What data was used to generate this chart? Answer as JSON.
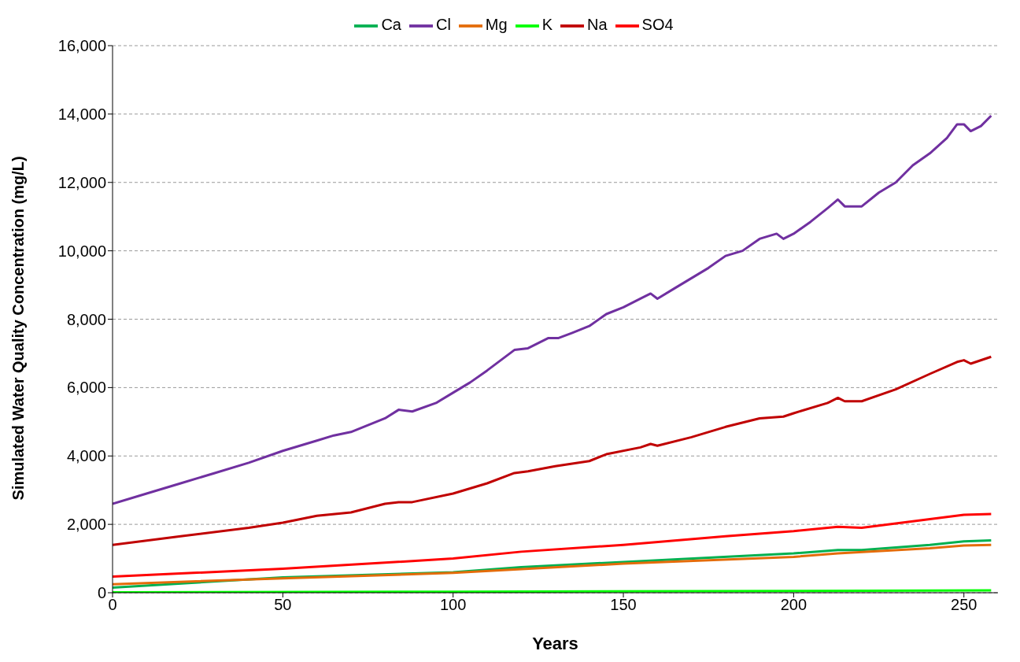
{
  "chart_data": {
    "type": "line",
    "xlabel": "Years",
    "ylabel": "Simulated Water Quality Concentration  (mg/L)",
    "xlim": [
      0,
      260
    ],
    "xticks": [
      0,
      50,
      100,
      150,
      200,
      250
    ],
    "ylim": [
      0,
      16000
    ],
    "yticks": [
      0,
      {
        "value": 2000,
        "label": "2,000"
      },
      {
        "value": 4000,
        "label": "4,000"
      },
      {
        "value": 6000,
        "label": "6,000"
      },
      {
        "value": 8000,
        "label": "8,000"
      },
      {
        "value": 10000,
        "label": "10,000"
      },
      {
        "value": 12000,
        "label": "12,000"
      },
      {
        "value": 14000,
        "label": "14,000"
      },
      {
        "value": 16000,
        "label": "16,000"
      }
    ],
    "grid": "y",
    "legend": "top",
    "marker": "none",
    "line_style": "solid",
    "series": [
      {
        "name": "Ca",
        "color": "#00b050",
        "x": [
          0,
          50,
          100,
          120,
          150,
          200,
          213,
          220,
          240,
          250,
          258
        ],
        "values": [
          150,
          450,
          600,
          750,
          900,
          1150,
          1250,
          1250,
          1400,
          1500,
          1530
        ]
      },
      {
        "name": "Cl",
        "color": "#7030a0",
        "x": [
          0,
          10,
          20,
          30,
          40,
          50,
          60,
          65,
          70,
          80,
          84,
          88,
          95,
          100,
          105,
          110,
          118,
          122,
          128,
          131,
          135,
          140,
          145,
          150,
          155,
          158,
          160,
          165,
          170,
          175,
          180,
          185,
          190,
          195,
          197,
          200,
          205,
          210,
          213,
          215,
          220,
          225,
          230,
          235,
          240,
          245,
          248,
          250,
          252,
          255,
          258
        ],
        "values": [
          2600,
          2900,
          3200,
          3500,
          3800,
          4150,
          4450,
          4600,
          4700,
          5100,
          5350,
          5300,
          5550,
          5850,
          6150,
          6500,
          7100,
          7150,
          7450,
          7450,
          7600,
          7800,
          8150,
          8350,
          8600,
          8750,
          8600,
          8900,
          9200,
          9500,
          9850,
          10000,
          10350,
          10500,
          10350,
          10500,
          10850,
          11250,
          11500,
          11300,
          11300,
          11700,
          12000,
          12500,
          12850,
          13300,
          13700,
          13700,
          13500,
          13650,
          13950
        ]
      },
      {
        "name": "Mg",
        "color": "#e46c0a",
        "x": [
          0,
          50,
          100,
          150,
          200,
          213,
          240,
          250,
          258
        ],
        "values": [
          250,
          420,
          580,
          850,
          1050,
          1150,
          1300,
          1380,
          1400
        ]
      },
      {
        "name": "K",
        "color": "#00ff00",
        "x": [
          0,
          100,
          200,
          258
        ],
        "values": [
          10,
          30,
          50,
          70
        ]
      },
      {
        "name": "Na",
        "color": "#c00000",
        "x": [
          0,
          20,
          40,
          50,
          60,
          70,
          80,
          84,
          88,
          100,
          110,
          118,
          122,
          130,
          140,
          145,
          155,
          158,
          160,
          170,
          180,
          190,
          197,
          200,
          210,
          213,
          215,
          220,
          230,
          240,
          248,
          250,
          252,
          258
        ],
        "values": [
          1400,
          1650,
          1900,
          2050,
          2250,
          2350,
          2600,
          2650,
          2650,
          2900,
          3200,
          3500,
          3550,
          3700,
          3850,
          4050,
          4250,
          4350,
          4300,
          4550,
          4850,
          5100,
          5150,
          5250,
          5550,
          5700,
          5600,
          5600,
          5950,
          6400,
          6750,
          6800,
          6700,
          6900
        ]
      },
      {
        "name": "SO4",
        "color": "#ff0000",
        "x": [
          0,
          50,
          100,
          120,
          150,
          180,
          200,
          213,
          220,
          240,
          250,
          258
        ],
        "values": [
          470,
          700,
          1000,
          1200,
          1400,
          1650,
          1800,
          1930,
          1900,
          2150,
          2280,
          2300
        ]
      }
    ]
  }
}
